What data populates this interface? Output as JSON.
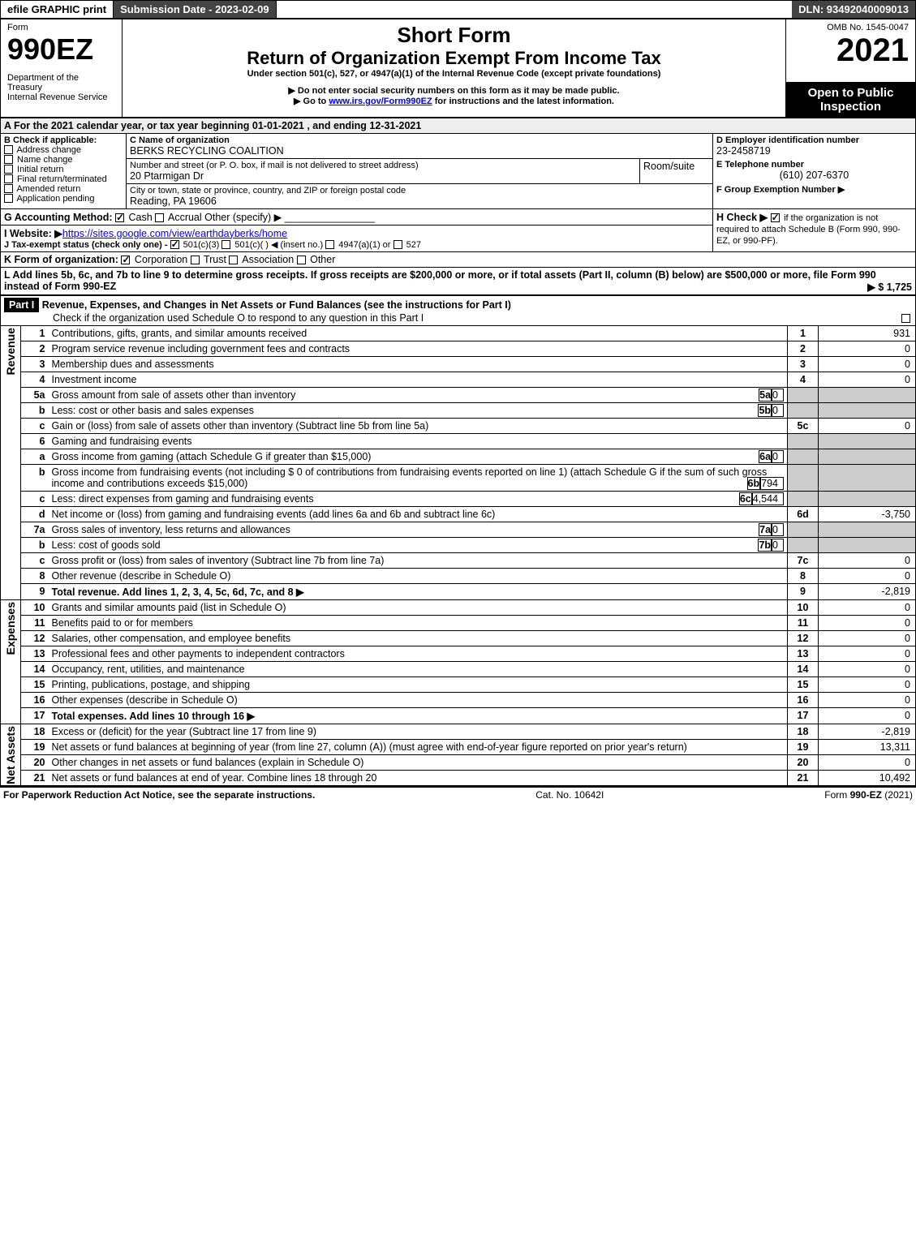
{
  "topbar": {
    "efile": "efile GRAPHIC print",
    "submission": "Submission Date - 2023-02-09",
    "dln": "DLN: 93492040009013"
  },
  "header": {
    "form_label": "Form",
    "form_no": "990EZ",
    "dept": "Department of the Treasury\nInternal Revenue Service",
    "title1": "Short Form",
    "title2": "Return of Organization Exempt From Income Tax",
    "subtitle": "Under section 501(c), 527, or 4947(a)(1) of the Internal Revenue Code (except private foundations)",
    "note1": "▶ Do not enter social security numbers on this form as it may be made public.",
    "note2": "▶ Go to www.irs.gov/Form990EZ for instructions and the latest information.",
    "omb": "OMB No. 1545-0047",
    "year": "2021",
    "inspection": "Open to Public Inspection"
  },
  "section_a": {
    "a_line": "A  For the 2021 calendar year, or tax year beginning 01-01-2021 , and ending 12-31-2021",
    "b_label": "B  Check if applicable:",
    "b_opts": [
      "Address change",
      "Name change",
      "Initial return",
      "Final return/terminated",
      "Amended return",
      "Application pending"
    ],
    "c_label": "C Name of organization",
    "c_name": "BERKS RECYCLING COALITION",
    "c_street_label": "Number and street (or P. O. box, if mail is not delivered to street address)",
    "c_street": "20 Ptarmigan Dr",
    "c_room_label": "Room/suite",
    "c_city_label": "City or town, state or province, country, and ZIP or foreign postal code",
    "c_city": "Reading, PA  19606",
    "d_label": "D Employer identification number",
    "d_val": "23-2458719",
    "e_label": "E Telephone number",
    "e_val": "(610) 207-6370",
    "f_label": "F Group Exemption Number  ▶",
    "g_label": "G Accounting Method:",
    "g_cash": "Cash",
    "g_accrual": "Accrual",
    "g_other": "Other (specify) ▶",
    "h_label": "H  Check ▶",
    "h_text": "if the organization is not required to attach Schedule B (Form 990, 990-EZ, or 990-PF).",
    "i_label": "I Website: ▶",
    "i_val": "https://sites.google.com/view/earthdayberks/home",
    "j_label": "J Tax-exempt status (check only one) -",
    "j_501c3": "501(c)(3)",
    "j_501c": "501(c)( )",
    "j_insert": "◀ (insert no.)",
    "j_4947": "4947(a)(1) or",
    "j_527": "527",
    "k_label": "K Form of organization:",
    "k_opts": [
      "Corporation",
      "Trust",
      "Association",
      "Other"
    ],
    "l_text": "L Add lines 5b, 6c, and 7b to line 9 to determine gross receipts. If gross receipts are $200,000 or more, or if total assets (Part II, column (B) below) are $500,000 or more, file Form 990 instead of Form 990-EZ",
    "l_val": "▶ $ 1,725"
  },
  "part1": {
    "header": "Part I",
    "title": "Revenue, Expenses, and Changes in Net Assets or Fund Balances (see the instructions for Part I)",
    "check_line": "Check if the organization used Schedule O to respond to any question in this Part I",
    "revenue_label": "Revenue",
    "expenses_label": "Expenses",
    "netassets_label": "Net Assets",
    "rows": [
      {
        "n": "1",
        "t": "Contributions, gifts, grants, and similar amounts received",
        "rn": "1",
        "v": "931"
      },
      {
        "n": "2",
        "t": "Program service revenue including government fees and contracts",
        "rn": "2",
        "v": "0"
      },
      {
        "n": "3",
        "t": "Membership dues and assessments",
        "rn": "3",
        "v": "0"
      },
      {
        "n": "4",
        "t": "Investment income",
        "rn": "4",
        "v": "0"
      },
      {
        "n": "5a",
        "t": "Gross amount from sale of assets other than inventory",
        "sn": "5a",
        "sv": "0"
      },
      {
        "n": "b",
        "t": "Less: cost or other basis and sales expenses",
        "sn": "5b",
        "sv": "0"
      },
      {
        "n": "c",
        "t": "Gain or (loss) from sale of assets other than inventory (Subtract line 5b from line 5a)",
        "rn": "5c",
        "v": "0"
      },
      {
        "n": "6",
        "t": "Gaming and fundraising events"
      },
      {
        "n": "a",
        "t": "Gross income from gaming (attach Schedule G if greater than $15,000)",
        "sn": "6a",
        "sv": "0"
      },
      {
        "n": "b",
        "t": "Gross income from fundraising events (not including $  0          of contributions from fundraising events reported on line 1) (attach Schedule G if the sum of such gross income and contributions exceeds $15,000)",
        "sn": "6b",
        "sv": "794"
      },
      {
        "n": "c",
        "t": "Less: direct expenses from gaming and fundraising events",
        "sn": "6c",
        "sv": "4,544"
      },
      {
        "n": "d",
        "t": "Net income or (loss) from gaming and fundraising events (add lines 6a and 6b and subtract line 6c)",
        "rn": "6d",
        "v": "-3,750"
      },
      {
        "n": "7a",
        "t": "Gross sales of inventory, less returns and allowances",
        "sn": "7a",
        "sv": "0"
      },
      {
        "n": "b",
        "t": "Less: cost of goods sold",
        "sn": "7b",
        "sv": "0"
      },
      {
        "n": "c",
        "t": "Gross profit or (loss) from sales of inventory (Subtract line 7b from line 7a)",
        "rn": "7c",
        "v": "0"
      },
      {
        "n": "8",
        "t": "Other revenue (describe in Schedule O)",
        "rn": "8",
        "v": "0"
      },
      {
        "n": "9",
        "t": "Total revenue. Add lines 1, 2, 3, 4, 5c, 6d, 7c, and 8",
        "rn": "9",
        "v": "-2,819",
        "bold": true,
        "arrow": true
      }
    ],
    "exp_rows": [
      {
        "n": "10",
        "t": "Grants and similar amounts paid (list in Schedule O)",
        "rn": "10",
        "v": "0"
      },
      {
        "n": "11",
        "t": "Benefits paid to or for members",
        "rn": "11",
        "v": "0"
      },
      {
        "n": "12",
        "t": "Salaries, other compensation, and employee benefits",
        "rn": "12",
        "v": "0"
      },
      {
        "n": "13",
        "t": "Professional fees and other payments to independent contractors",
        "rn": "13",
        "v": "0"
      },
      {
        "n": "14",
        "t": "Occupancy, rent, utilities, and maintenance",
        "rn": "14",
        "v": "0"
      },
      {
        "n": "15",
        "t": "Printing, publications, postage, and shipping",
        "rn": "15",
        "v": "0"
      },
      {
        "n": "16",
        "t": "Other expenses (describe in Schedule O)",
        "rn": "16",
        "v": "0"
      },
      {
        "n": "17",
        "t": "Total expenses. Add lines 10 through 16",
        "rn": "17",
        "v": "0",
        "bold": true,
        "arrow": true
      }
    ],
    "net_rows": [
      {
        "n": "18",
        "t": "Excess or (deficit) for the year (Subtract line 17 from line 9)",
        "rn": "18",
        "v": "-2,819"
      },
      {
        "n": "19",
        "t": "Net assets or fund balances at beginning of year (from line 27, column (A)) (must agree with end-of-year figure reported on prior year's return)",
        "rn": "19",
        "v": "13,311"
      },
      {
        "n": "20",
        "t": "Other changes in net assets or fund balances (explain in Schedule O)",
        "rn": "20",
        "v": "0"
      },
      {
        "n": "21",
        "t": "Net assets or fund balances at end of year. Combine lines 18 through 20",
        "rn": "21",
        "v": "10,492"
      }
    ]
  },
  "footer": {
    "left": "For Paperwork Reduction Act Notice, see the separate instructions.",
    "mid": "Cat. No. 10642I",
    "right": "Form 990-EZ (2021)"
  },
  "colors": {
    "header_bg": "#444444",
    "gray": "#cccccc",
    "link": "#0000ee"
  }
}
